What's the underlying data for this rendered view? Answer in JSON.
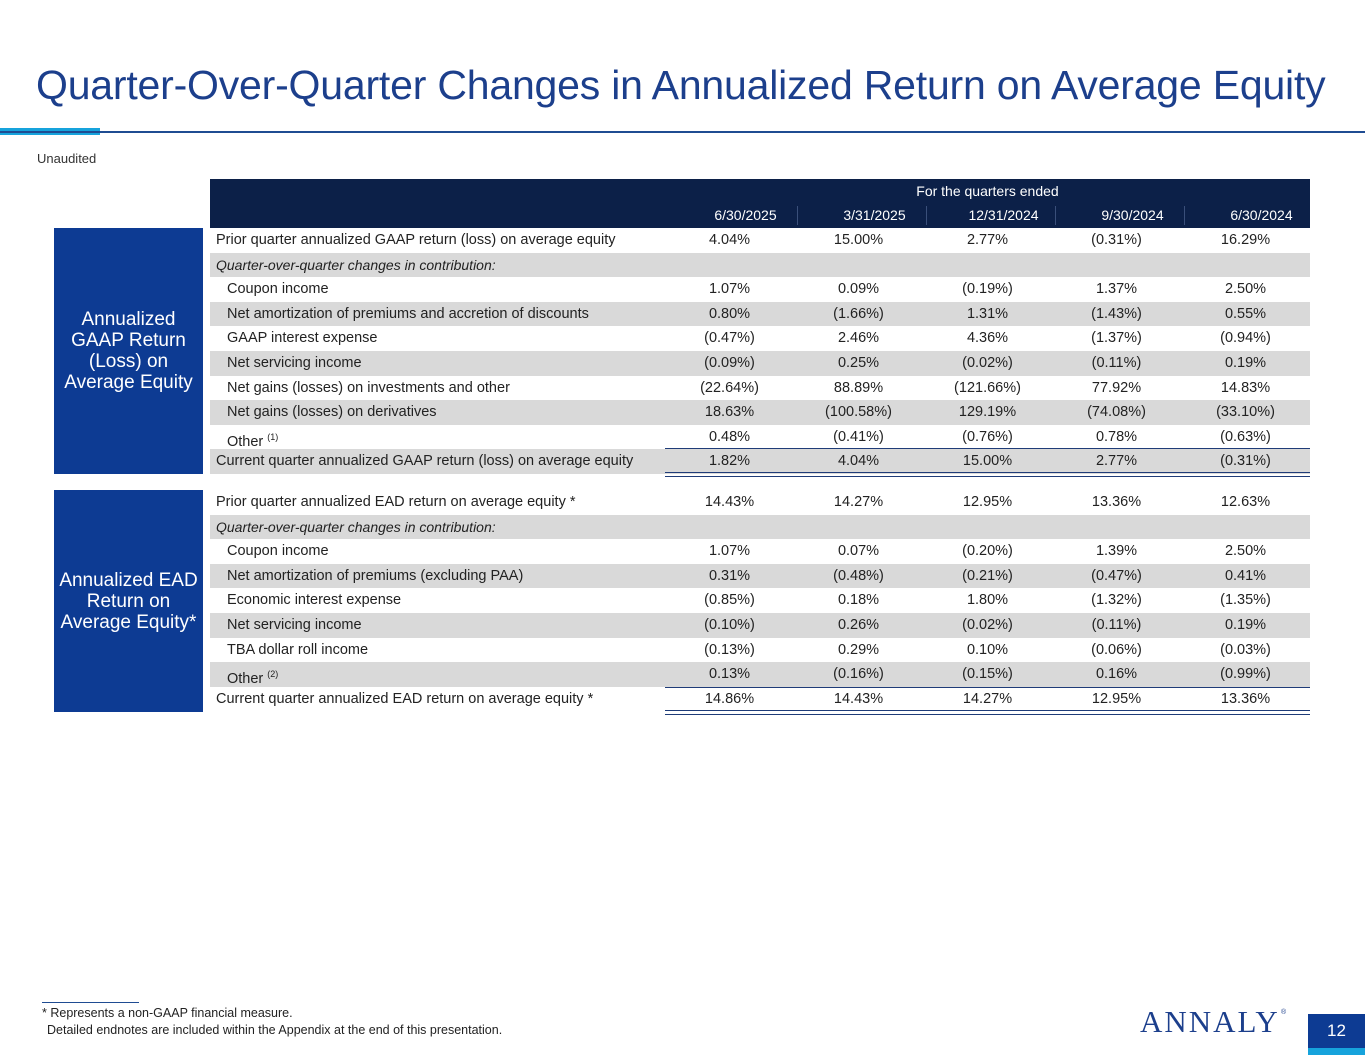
{
  "title": "Quarter-Over-Quarter Changes in Annualized Return on Average Equity",
  "subtitle": "Unaudited",
  "table": {
    "span_header": "For the quarters ended",
    "columns": [
      "6/30/2025",
      "3/31/2025",
      "12/31/2024",
      "9/30/2024",
      "6/30/2024"
    ]
  },
  "gaap": {
    "side_label": "Annualized GAAP Return (Loss) on Average Equity",
    "rows": [
      {
        "label": "Prior quarter annualized GAAP return (loss) on average equity",
        "values": [
          "4.04%",
          "15.00%",
          "2.77%",
          "(0.31%)",
          "16.29%"
        ]
      },
      {
        "label": "Quarter-over-quarter changes in contribution:",
        "values": []
      },
      {
        "label": "Coupon income",
        "values": [
          "1.07%",
          "0.09%",
          "(0.19%)",
          "1.37%",
          "2.50%"
        ]
      },
      {
        "label": "Net amortization of premiums and accretion of discounts",
        "values": [
          "0.80%",
          "(1.66%)",
          "1.31%",
          "(1.43%)",
          "0.55%"
        ]
      },
      {
        "label": "GAAP interest expense",
        "values": [
          "(0.47%)",
          "2.46%",
          "4.36%",
          "(1.37%)",
          "(0.94%)"
        ]
      },
      {
        "label": "Net servicing income",
        "values": [
          "(0.09%)",
          "0.25%",
          "(0.02%)",
          "(0.11%)",
          "0.19%"
        ]
      },
      {
        "label": "Net gains (losses) on investments and other",
        "values": [
          "(22.64%)",
          "88.89%",
          "(121.66%)",
          "77.92%",
          "14.83%"
        ]
      },
      {
        "label": "Net gains (losses) on derivatives",
        "values": [
          "18.63%",
          "(100.58%)",
          "129.19%",
          "(74.08%)",
          "(33.10%)"
        ]
      },
      {
        "label": "Other",
        "note": "(1)",
        "values": [
          "0.48%",
          "(0.41%)",
          "(0.76%)",
          "0.78%",
          "(0.63%)"
        ]
      },
      {
        "label": "Current quarter annualized GAAP return (loss) on average equity",
        "values": [
          "1.82%",
          "4.04%",
          "15.00%",
          "2.77%",
          "(0.31%)"
        ]
      }
    ]
  },
  "ead": {
    "side_label": "Annualized EAD Return on Average Equity*",
    "rows": [
      {
        "label": "Prior quarter annualized EAD return on average equity *",
        "values": [
          "14.43%",
          "14.27%",
          "12.95%",
          "13.36%",
          "12.63%"
        ]
      },
      {
        "label": "Quarter-over-quarter changes in contribution:",
        "values": []
      },
      {
        "label": "Coupon income",
        "values": [
          "1.07%",
          "0.07%",
          "(0.20%)",
          "1.39%",
          "2.50%"
        ]
      },
      {
        "label": "Net amortization of premiums (excluding PAA)",
        "values": [
          "0.31%",
          "(0.48%)",
          "(0.21%)",
          "(0.47%)",
          "0.41%"
        ]
      },
      {
        "label": "Economic interest expense",
        "values": [
          "(0.85%)",
          "0.18%",
          "1.80%",
          "(1.32%)",
          "(1.35%)"
        ]
      },
      {
        "label": "Net servicing income",
        "values": [
          "(0.10%)",
          "0.26%",
          "(0.02%)",
          "(0.11%)",
          "0.19%"
        ]
      },
      {
        "label": "TBA dollar roll income",
        "values": [
          "(0.13%)",
          "0.29%",
          "0.10%",
          "(0.06%)",
          "(0.03%)"
        ]
      },
      {
        "label": "Other",
        "note": "(2)",
        "values": [
          "0.13%",
          "(0.16%)",
          "(0.15%)",
          "0.16%",
          "(0.99%)"
        ]
      },
      {
        "label": "Current quarter annualized EAD return on average equity *",
        "values": [
          "14.86%",
          "14.43%",
          "14.27%",
          "12.95%",
          "13.36%"
        ]
      }
    ]
  },
  "footnotes": {
    "line1": "* Represents a non-GAAP financial measure.",
    "line2": "Detailed endnotes are included within the Appendix at the end of this presentation."
  },
  "logo_text": "ANNALY",
  "logo_mark": "®",
  "page_number": "12"
}
